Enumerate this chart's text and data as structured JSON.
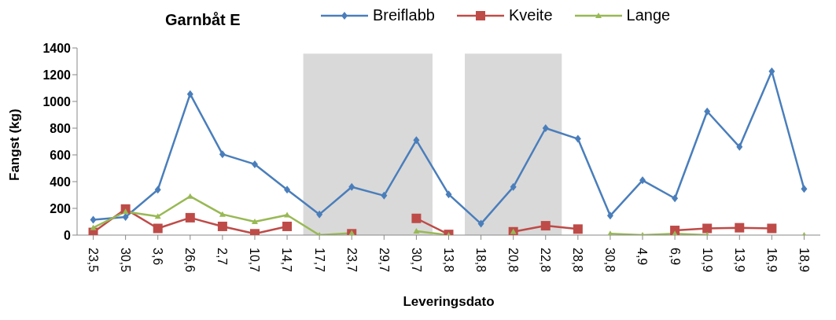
{
  "chart_data": {
    "type": "line",
    "title": "Garnbåt E",
    "xlabel": "Leveringsdato",
    "ylabel": "Fangst (kg)",
    "categories": [
      "23,5",
      "30,5",
      "3,6",
      "26,6",
      "2,7",
      "10,7",
      "14,7",
      "17,7",
      "23,7",
      "29,7",
      "30,7",
      "13,8",
      "18,8",
      "20,8",
      "22,8",
      "28,8",
      "30,8",
      "4,9",
      "6,9",
      "10,9",
      "13,9",
      "16,9",
      "18,9"
    ],
    "series": [
      {
        "name": "Breiflabb",
        "color": "#4a7ebb",
        "marker": "diamond",
        "values": [
          115,
          135,
          340,
          1055,
          605,
          530,
          340,
          155,
          360,
          295,
          710,
          305,
          85,
          360,
          800,
          720,
          145,
          410,
          275,
          925,
          660,
          1225,
          345
        ]
      },
      {
        "name": "Kveite",
        "color": "#be4b48",
        "marker": "square",
        "values": [
          20,
          195,
          50,
          130,
          65,
          10,
          65,
          null,
          10,
          null,
          125,
          5,
          null,
          25,
          70,
          45,
          null,
          null,
          35,
          50,
          55,
          50,
          null
        ]
      },
      {
        "name": "Lange",
        "color": "#98b954",
        "marker": "triangle",
        "values": [
          55,
          175,
          140,
          290,
          155,
          100,
          150,
          0,
          15,
          null,
          30,
          0,
          null,
          25,
          null,
          null,
          10,
          0,
          10,
          0,
          null,
          null,
          0
        ]
      }
    ],
    "bands": [
      {
        "axis": "x",
        "from": "17,7",
        "to": "30,7",
        "color": "#d9d9d9"
      },
      {
        "axis": "x",
        "from": "18,8",
        "to": "22,8",
        "color": "#d9d9d9"
      }
    ],
    "ylim": [
      0,
      1400
    ],
    "yticks": [
      0,
      200,
      400,
      600,
      800,
      1000,
      1200,
      1400
    ],
    "legend": "top"
  }
}
